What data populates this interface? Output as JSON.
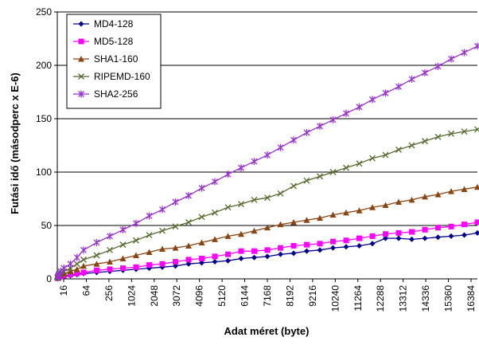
{
  "chart_data": {
    "type": "line",
    "title": "",
    "xlabel": "Adat méret (byte)",
    "ylabel": "Futási idő (másodperc x E-6)",
    "ylim": [
      0,
      250
    ],
    "yticks": [
      0,
      50,
      100,
      150,
      200,
      250
    ],
    "grid": "horizontal",
    "legend_position": "top-left",
    "categories": [
      "16",
      "64",
      "256",
      "1024",
      "2048",
      "3072",
      "4096",
      "5120",
      "6144",
      "7168",
      "8192",
      "9216",
      "10240",
      "11264",
      "12288",
      "13312",
      "14336",
      "15360",
      "16384"
    ],
    "x": [
      16,
      32,
      48,
      64,
      128,
      256,
      512,
      768,
      1024,
      1536,
      2048,
      2560,
      3072,
      3584,
      4096,
      4608,
      5120,
      5632,
      6144,
      6656,
      7168,
      7680,
      8192,
      8704,
      9216,
      9728,
      10240,
      10752,
      11264,
      11776,
      12288,
      12800,
      13312,
      13824,
      14336,
      14848,
      15360,
      15872,
      16384
    ],
    "series": [
      {
        "name": "MD4-128",
        "color": "#00008b",
        "marker": "diamond",
        "values": [
          0.5,
          0.8,
          1,
          1.3,
          1.8,
          2.3,
          3,
          4,
          5,
          6,
          7,
          8,
          9,
          10,
          11,
          12,
          14,
          15,
          16,
          17,
          19,
          20,
          21,
          23,
          24,
          26,
          27,
          29,
          30,
          31,
          33,
          38,
          38,
          37,
          38,
          39,
          40,
          41,
          43
        ]
      },
      {
        "name": "MD5-128",
        "color": "#ff00ff",
        "marker": "square",
        "values": [
          0.6,
          0.9,
          1.2,
          1.6,
          2.2,
          3,
          4,
          5,
          6,
          8,
          9,
          10,
          11,
          13,
          14,
          16,
          18,
          19,
          21,
          23,
          26,
          26,
          27,
          29,
          31,
          32,
          33,
          35,
          36,
          38,
          40,
          42,
          43,
          44,
          46,
          48,
          49,
          51,
          53
        ]
      },
      {
        "name": "SHA1-160",
        "color": "#8b4513",
        "marker": "triangle",
        "values": [
          0.8,
          1.2,
          1.8,
          2.4,
          3.5,
          5,
          7,
          9,
          12,
          14,
          16,
          19,
          22,
          25,
          28,
          29,
          31,
          34,
          37,
          40,
          42,
          45,
          48,
          51,
          53,
          55,
          57,
          60,
          62,
          64,
          67,
          69,
          72,
          74,
          77,
          79,
          82,
          84,
          86
        ]
      },
      {
        "name": "RIPEMD-160",
        "color": "#556b2f",
        "marker": "x",
        "values": [
          1,
          1.5,
          2.3,
          3,
          5,
          7,
          10,
          14,
          18,
          22,
          27,
          32,
          36,
          41,
          45,
          49,
          53,
          58,
          62,
          67,
          70,
          74,
          76,
          80,
          87,
          92,
          96,
          100,
          104,
          108,
          113,
          116,
          121,
          125,
          129,
          133,
          136,
          138,
          140
        ]
      },
      {
        "name": "SHA2-256",
        "color": "#9932cc",
        "marker": "asterisk",
        "values": [
          1.5,
          2.2,
          3,
          4,
          7,
          10,
          14,
          20,
          27,
          34,
          40,
          46,
          52,
          59,
          65,
          72,
          78,
          85,
          91,
          98,
          104,
          110,
          116,
          123,
          130,
          137,
          143,
          149,
          155,
          161,
          168,
          174,
          180,
          187,
          193,
          199,
          206,
          212,
          218
        ]
      }
    ]
  }
}
